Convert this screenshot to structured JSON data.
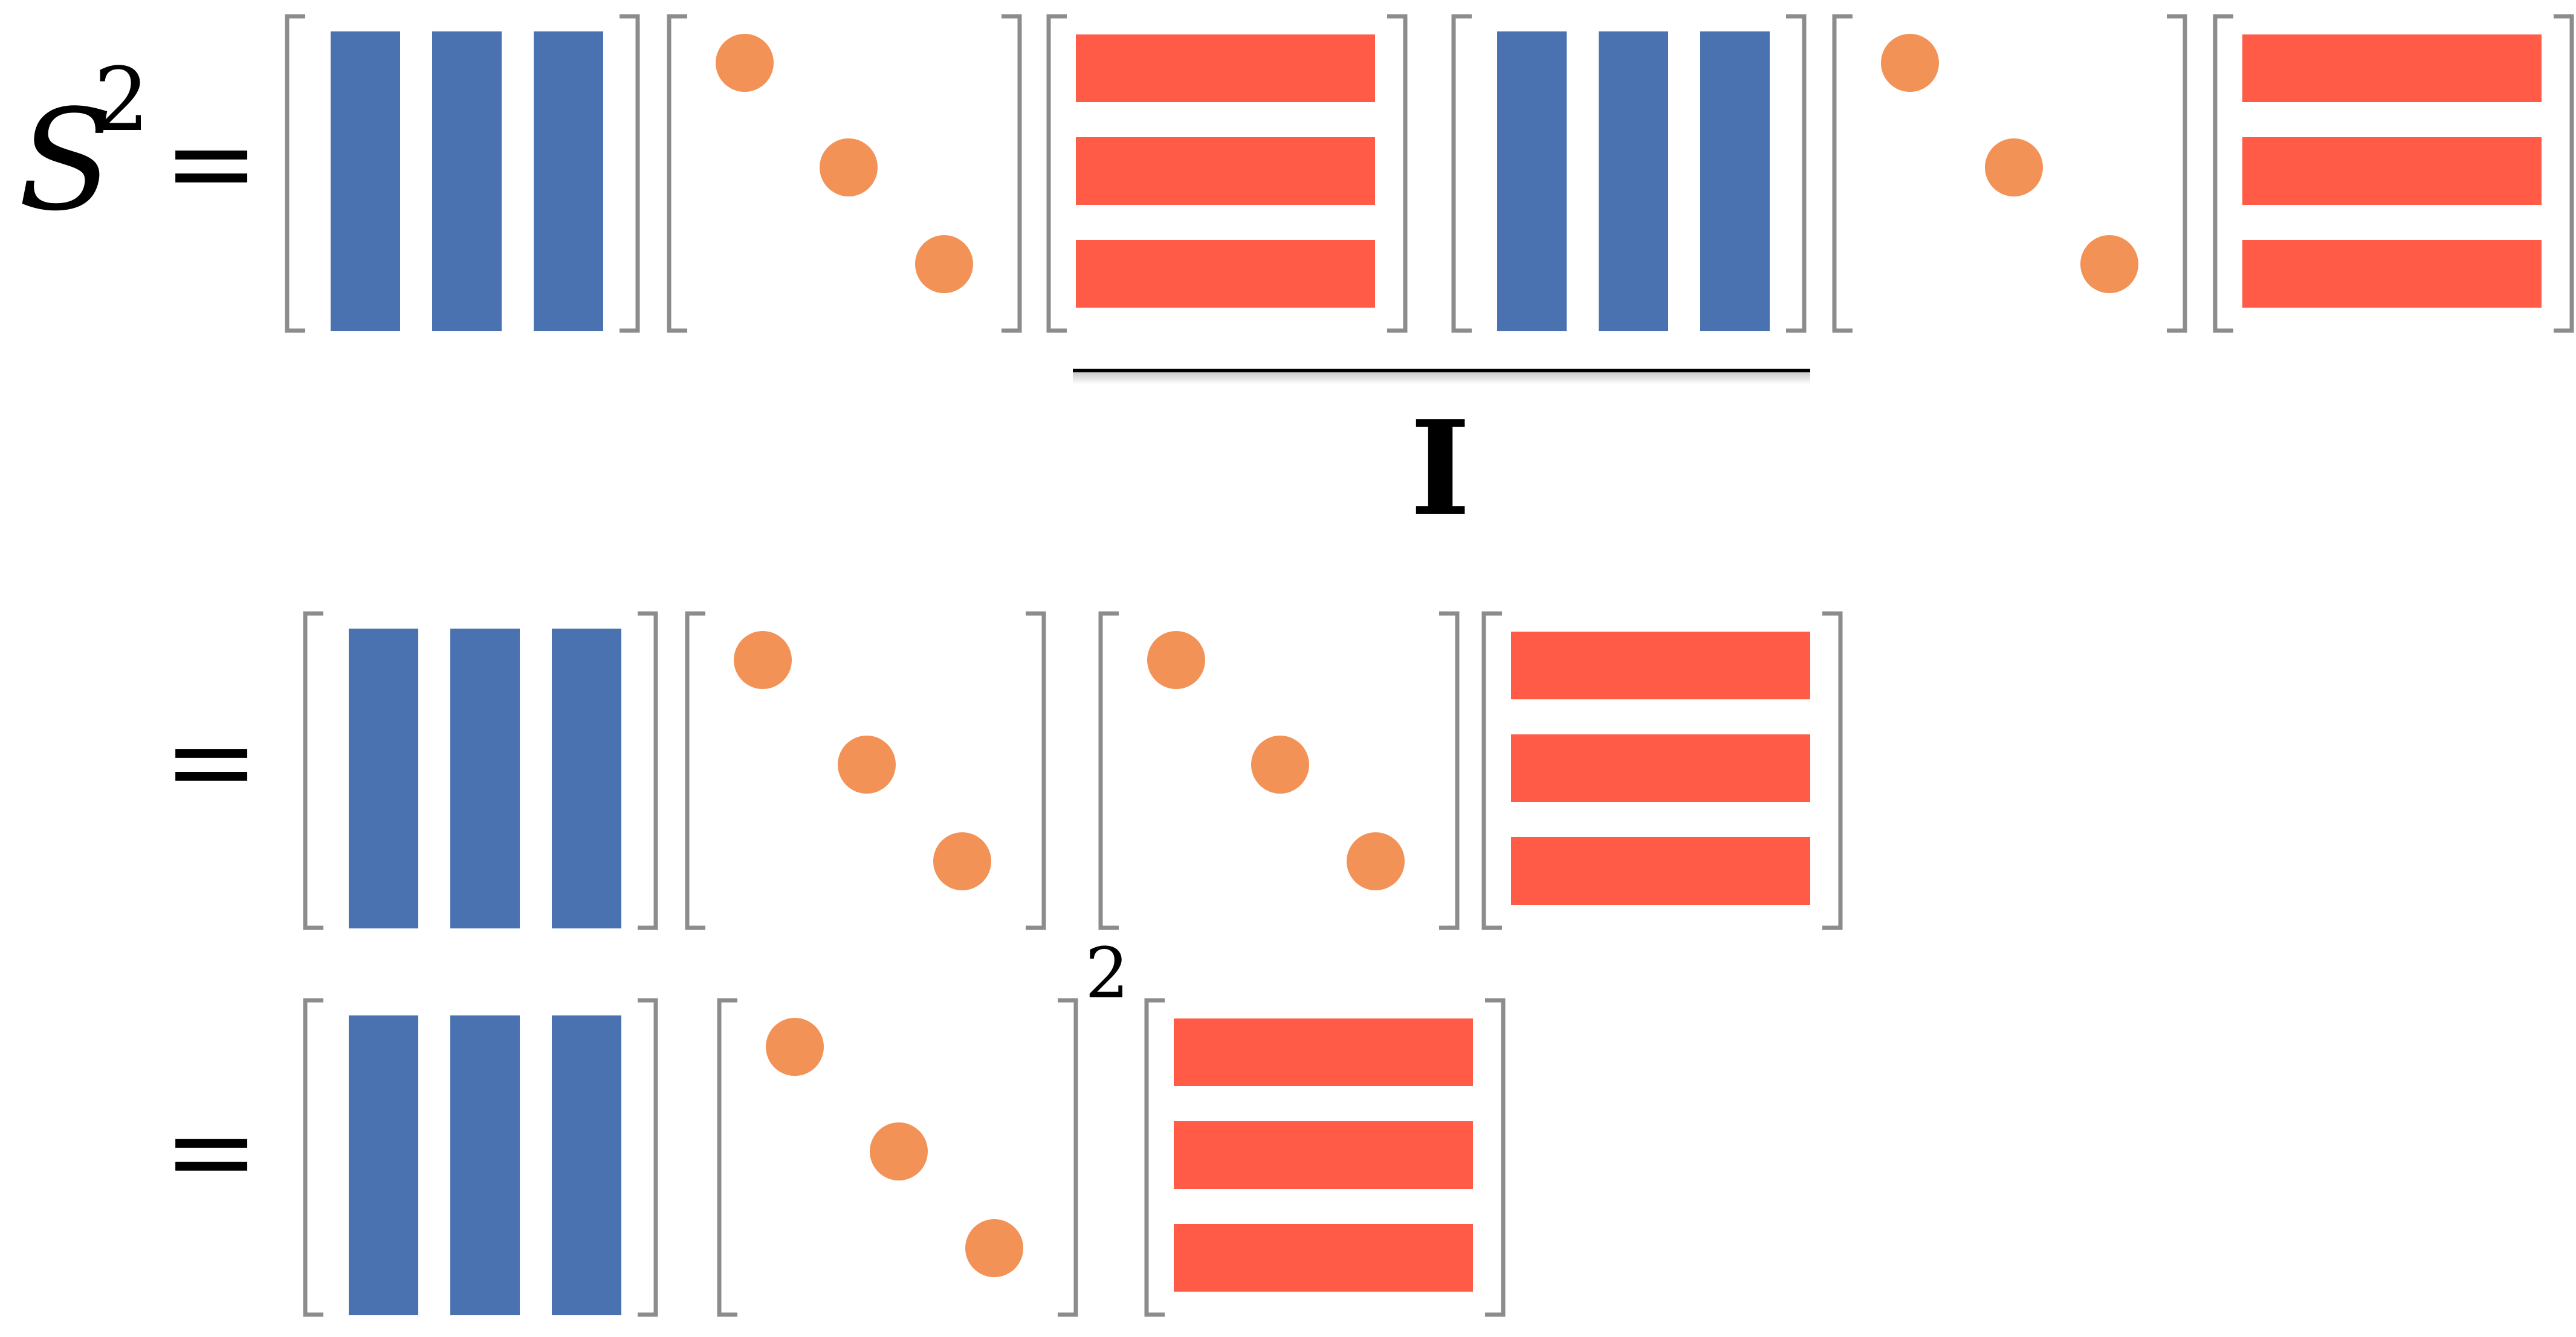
{
  "equation": {
    "lhs_symbol": "S",
    "lhs_exponent": "2",
    "equals_sign": "=",
    "identity_label": "I",
    "power_exponent": "2"
  },
  "colors": {
    "column_matrix": "#4a72b0",
    "row_matrix": "#ff5b47",
    "diagonal_dot": "#f39256",
    "bracket": "#8c8c8c",
    "text": "#000000"
  },
  "matrix_types": {
    "U": "column-vectors",
    "D": "diagonal",
    "V": "row-vectors"
  }
}
